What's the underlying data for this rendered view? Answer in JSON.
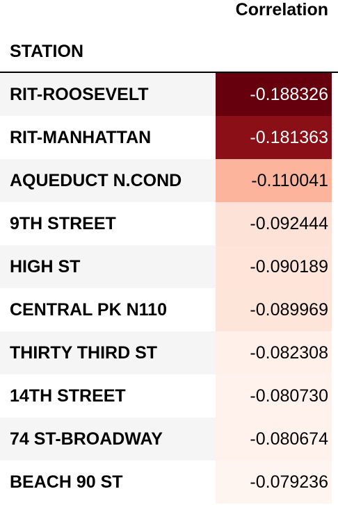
{
  "table": {
    "column_header": "Correlation",
    "index_name": "STATION",
    "rows": [
      {
        "station": "RIT-ROOSEVELT",
        "correlation": "-0.188326",
        "cell_color": "#67000d",
        "text_color": "#ffffff"
      },
      {
        "station": "RIT-MANHATTAN",
        "correlation": "-0.181363",
        "cell_color": "#8b0f17",
        "text_color": "#ffffff"
      },
      {
        "station": "AQUEDUCT N.COND",
        "correlation": "-0.110041",
        "cell_color": "#fcb59c",
        "text_color": "#000000"
      },
      {
        "station": "9TH STREET",
        "correlation": "-0.092444",
        "cell_color": "#fde2d7",
        "text_color": "#000000"
      },
      {
        "station": "HIGH ST",
        "correlation": "-0.090189",
        "cell_color": "#fee4d9",
        "text_color": "#000000"
      },
      {
        "station": "CENTRAL PK N110",
        "correlation": "-0.089969",
        "cell_color": "#fee5da",
        "text_color": "#000000"
      },
      {
        "station": "THIRTY THIRD ST",
        "correlation": "-0.082308",
        "cell_color": "#fff0ea",
        "text_color": "#000000"
      },
      {
        "station": "14TH STREET",
        "correlation": "-0.080730",
        "cell_color": "#fff2ed",
        "text_color": "#000000"
      },
      {
        "station": "74 ST-BROADWAY",
        "correlation": "-0.080674",
        "cell_color": "#fff2ed",
        "text_color": "#000000"
      },
      {
        "station": "BEACH 90 ST",
        "correlation": "-0.079236",
        "cell_color": "#fff5f0",
        "text_color": "#000000"
      }
    ]
  }
}
